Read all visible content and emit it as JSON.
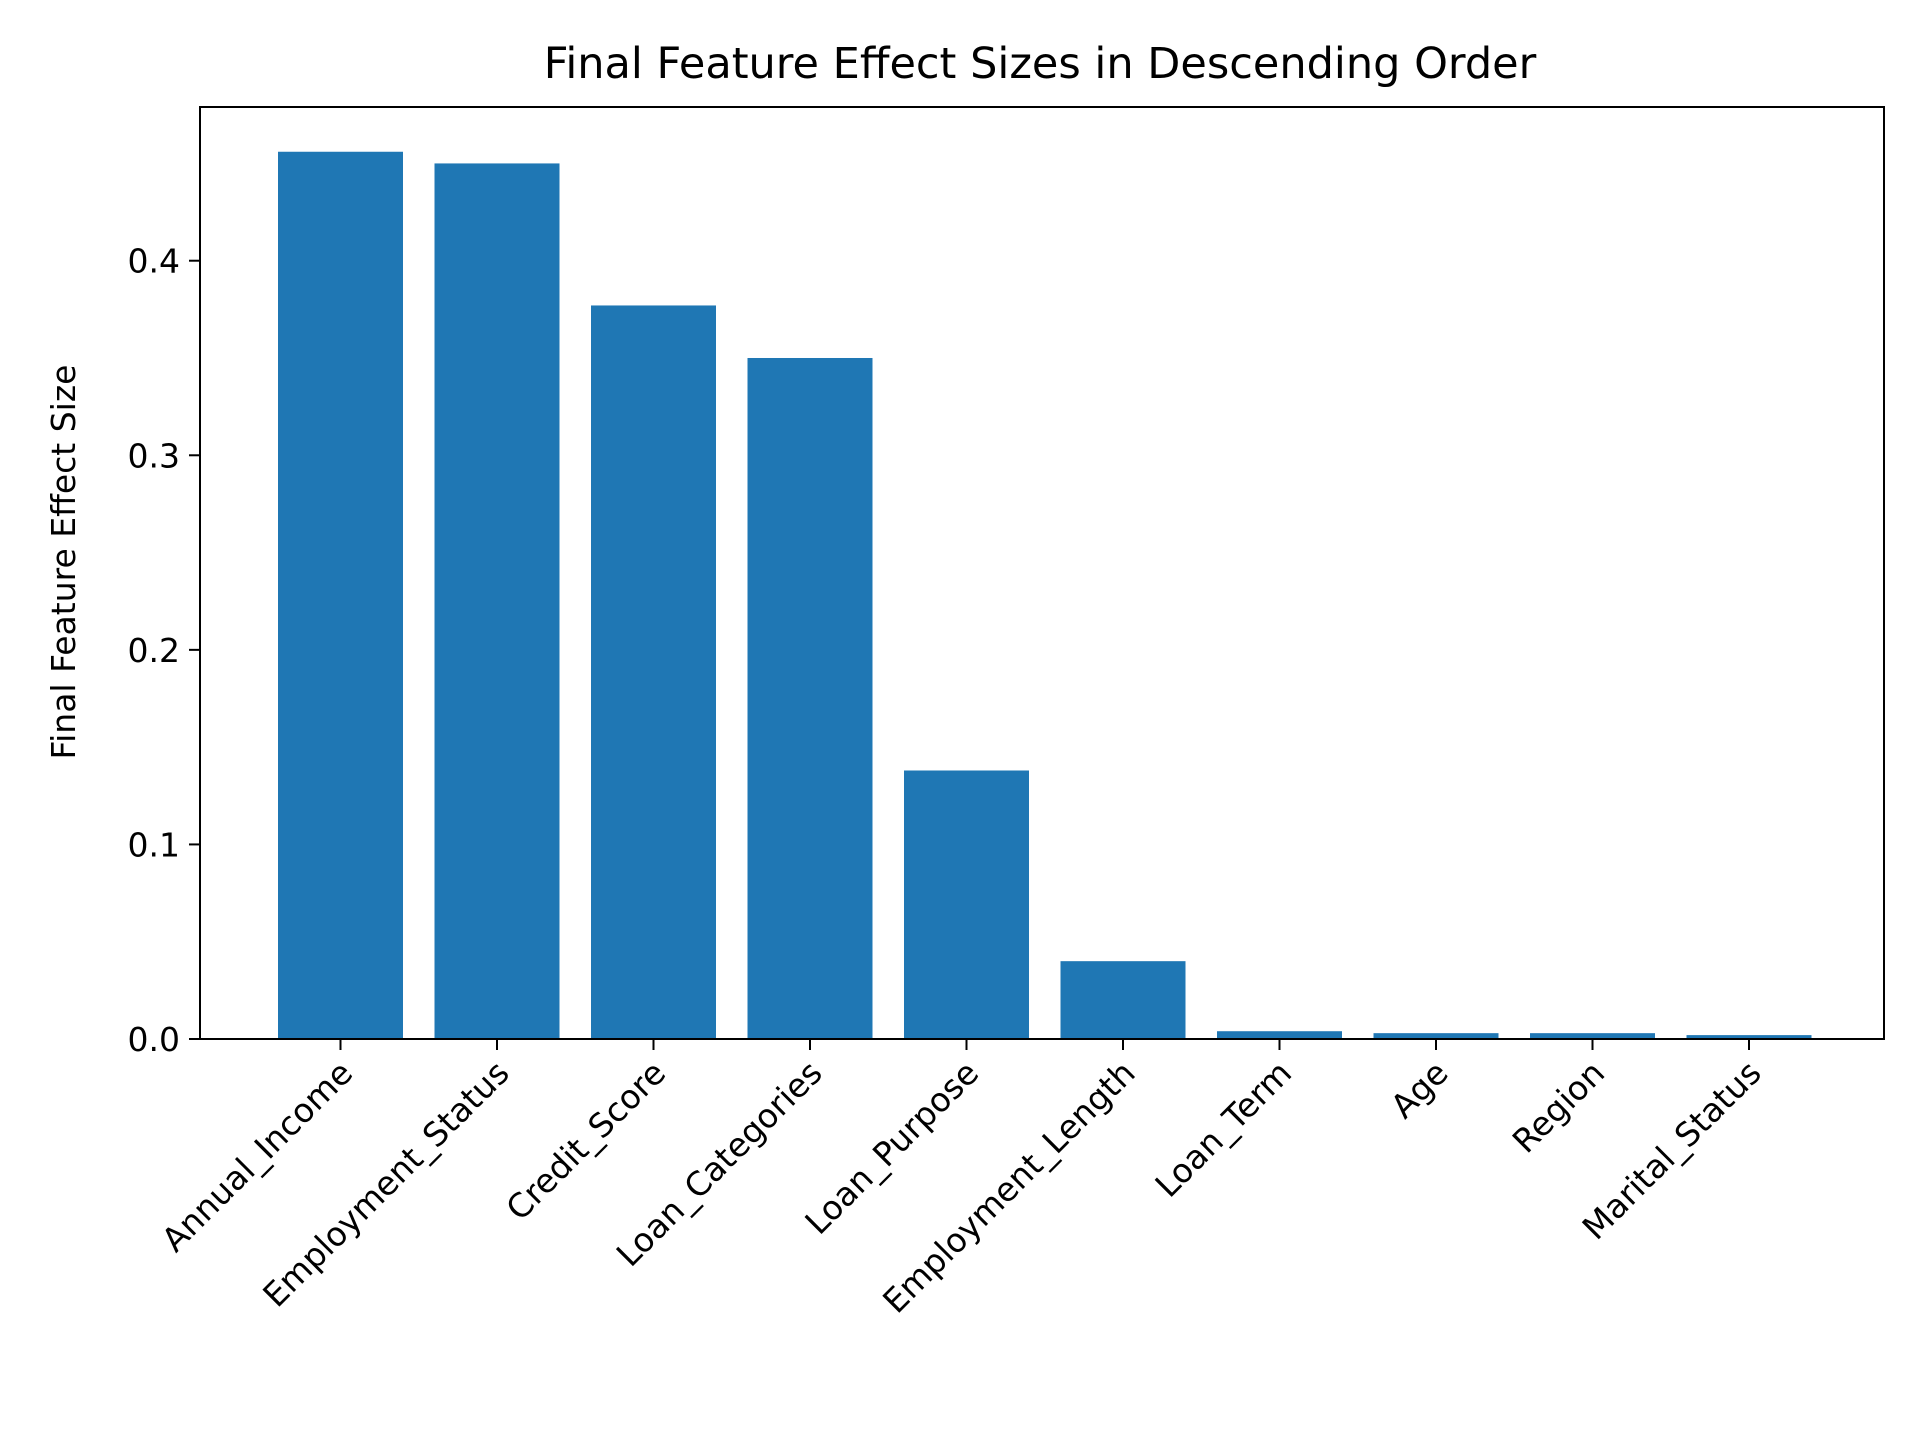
{
  "chart_data": {
    "type": "bar",
    "title": "Final Feature Effect Sizes in Descending Order",
    "xlabel": "",
    "ylabel": "Final Feature Effect Size",
    "categories": [
      "Annual_Income",
      "Employment_Status",
      "Credit_Score",
      "Loan_Categories",
      "Loan_Purpose",
      "Employment_Length",
      "Loan_Term",
      "Age",
      "Region",
      "Marital_Status"
    ],
    "values": [
      0.456,
      0.45,
      0.377,
      0.35,
      0.138,
      0.04,
      0.004,
      0.003,
      0.003,
      0.002
    ],
    "ylim": [
      0,
      0.479
    ],
    "yticks": [
      0.0,
      0.1,
      0.2,
      0.3,
      0.4
    ],
    "ytick_labels": [
      "0.0",
      "0.1",
      "0.2",
      "0.3",
      "0.4"
    ],
    "bar_color": "#1f77b4",
    "grid": false,
    "legend": "none"
  }
}
